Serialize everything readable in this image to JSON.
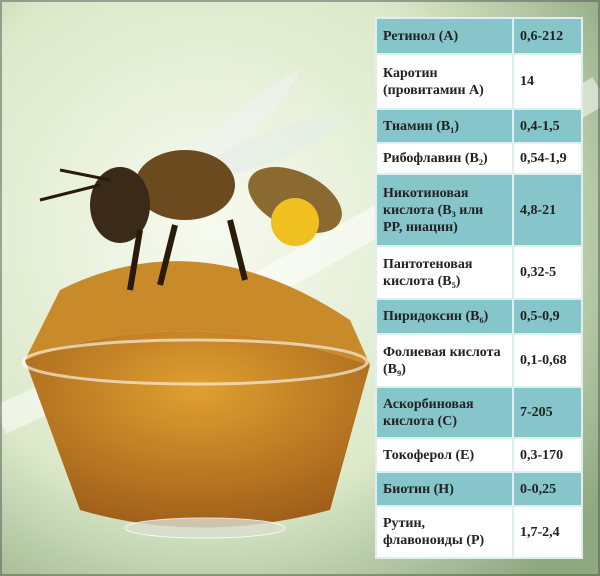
{
  "table": {
    "rows": [
      [
        "Ретинол (A)",
        "0,6-212"
      ],
      [
        "Каротин (провитамин A)",
        "14"
      ],
      [
        "Тиамин (B₁)",
        "0,4-1,5"
      ],
      [
        "Рибофлавин (B₂)",
        "0,54-1,9"
      ],
      [
        "Никотиновая кислота (B₃ или PP, ниацин)",
        "4,8-21"
      ],
      [
        "Пантотеновая кислота (B₅)",
        "0,32-5"
      ],
      [
        "Пиридоксин (B₆)",
        "0,5-0,9"
      ],
      [
        "Фолиевая кислота (B₉)",
        "0,1-0,68"
      ],
      [
        "Аскорбиновая кислота (C)",
        "7-205"
      ],
      [
        "Токоферол (E)",
        "0,3-170"
      ],
      [
        "Биотин (H)",
        "0-0,25"
      ],
      [
        "Рутин, флавоноиды (P)",
        "1,7-2,4"
      ]
    ]
  }
}
